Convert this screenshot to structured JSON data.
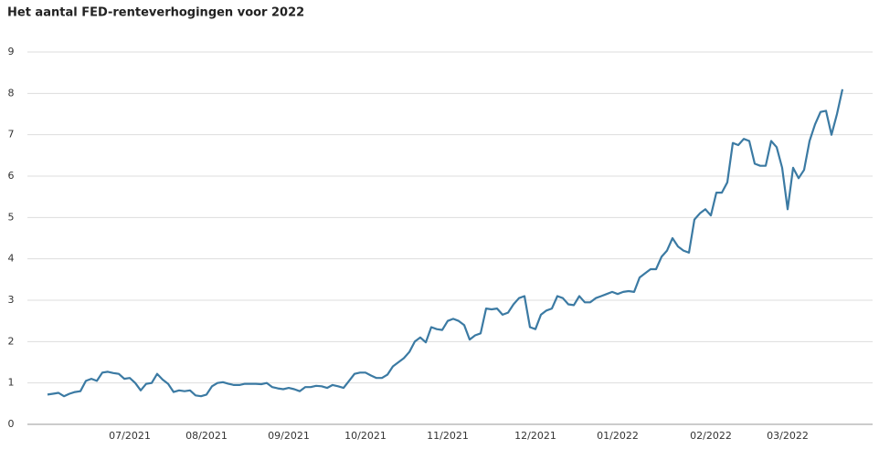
{
  "chart_data": {
    "type": "line",
    "title": "Het aantal FED-renteverhogingen voor 2022",
    "categories": [
      null,
      null,
      null,
      null,
      null,
      null,
      null,
      null,
      null,
      null,
      null,
      null,
      null,
      null,
      null,
      "07/2021",
      null,
      null,
      null,
      null,
      null,
      null,
      null,
      null,
      null,
      null,
      null,
      null,
      null,
      "08/2021",
      null,
      null,
      null,
      null,
      null,
      null,
      null,
      null,
      null,
      null,
      null,
      null,
      null,
      null,
      "09/2021",
      null,
      null,
      null,
      null,
      null,
      null,
      null,
      null,
      null,
      null,
      null,
      null,
      null,
      "10/2021",
      null,
      null,
      null,
      null,
      null,
      null,
      null,
      null,
      null,
      null,
      null,
      null,
      null,
      null,
      "11/2021",
      null,
      null,
      null,
      null,
      null,
      null,
      null,
      null,
      null,
      null,
      null,
      null,
      null,
      null,
      null,
      "12/2021",
      null,
      null,
      null,
      null,
      null,
      null,
      null,
      null,
      null,
      null,
      null,
      null,
      null,
      null,
      "01/2022",
      null,
      null,
      null,
      null,
      null,
      null,
      null,
      null,
      null,
      null,
      null,
      null,
      null,
      null,
      null,
      null,
      "02/2022",
      null,
      null,
      null,
      null,
      null,
      null,
      null,
      null,
      null,
      null,
      null,
      null,
      null,
      "03/2022",
      null,
      null,
      null,
      null,
      null,
      null,
      null,
      null,
      null,
      null
    ],
    "values": [
      0.72,
      0.74,
      0.76,
      0.68,
      0.74,
      0.78,
      0.8,
      1.05,
      1.1,
      1.05,
      1.25,
      1.27,
      1.24,
      1.22,
      1.1,
      1.12,
      1.0,
      0.82,
      0.98,
      1.0,
      1.22,
      1.08,
      0.98,
      0.78,
      0.82,
      0.8,
      0.82,
      0.7,
      0.68,
      0.72,
      0.92,
      1.0,
      1.02,
      0.98,
      0.95,
      0.95,
      0.98,
      0.98,
      0.98,
      0.97,
      1.0,
      0.9,
      0.87,
      0.85,
      0.88,
      0.85,
      0.8,
      0.9,
      0.9,
      0.93,
      0.92,
      0.88,
      0.95,
      0.92,
      0.88,
      1.05,
      1.22,
      1.25,
      1.25,
      1.18,
      1.12,
      1.12,
      1.2,
      1.4,
      1.5,
      1.6,
      1.75,
      2.0,
      2.1,
      1.98,
      2.35,
      2.3,
      2.28,
      2.5,
      2.55,
      2.5,
      2.4,
      2.05,
      2.15,
      2.2,
      2.8,
      2.78,
      2.8,
      2.65,
      2.7,
      2.9,
      3.05,
      3.1,
      2.35,
      2.3,
      2.65,
      2.75,
      2.8,
      3.1,
      3.05,
      2.9,
      2.88,
      3.1,
      2.95,
      2.95,
      3.05,
      3.1,
      3.15,
      3.2,
      3.15,
      3.2,
      3.22,
      3.2,
      3.55,
      3.65,
      3.75,
      3.75,
      4.05,
      4.2,
      4.5,
      4.3,
      4.2,
      4.15,
      4.95,
      5.1,
      5.2,
      5.05,
      5.6,
      5.6,
      5.85,
      6.8,
      6.75,
      6.9,
      6.85,
      6.3,
      6.25,
      6.25,
      6.85,
      6.7,
      6.2,
      5.2,
      6.2,
      5.95,
      6.15,
      6.85,
      7.25,
      7.55,
      7.58,
      7.0,
      7.5,
      8.1
    ],
    "color": "#3b7aa3",
    "ylim": [
      0,
      9
    ],
    "yticks": [
      0,
      1,
      2,
      3,
      4,
      5,
      6,
      7,
      8,
      9
    ],
    "grid": true
  }
}
